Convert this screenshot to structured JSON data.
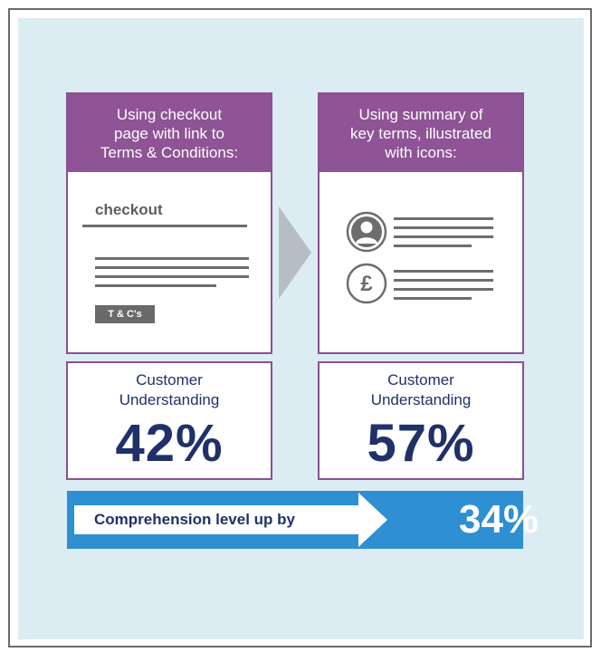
{
  "left_card": {
    "heading_lines": [
      "Using checkout",
      "page with link to",
      "Terms & Conditions:"
    ],
    "checkout_label": "checkout",
    "badge": "T & C's"
  },
  "right_card": {
    "heading_lines": [
      "Using summary of",
      "key terms, illustrated",
      "with icons:"
    ],
    "icons": [
      "person-icon",
      "pound-icon"
    ]
  },
  "stats": {
    "left": {
      "label_lines": [
        "Customer",
        "Understanding"
      ],
      "value": "42%"
    },
    "right": {
      "label_lines": [
        "Customer",
        "Understanding"
      ],
      "value": "57%"
    }
  },
  "banner": {
    "text": "Comprehension level up by",
    "value": "34%"
  },
  "colors": {
    "purple": "#8e5495",
    "navy": "#1f3168",
    "blue": "#2e8fd2",
    "panel": "#dcecf3",
    "gray": "#6d6d6d"
  }
}
